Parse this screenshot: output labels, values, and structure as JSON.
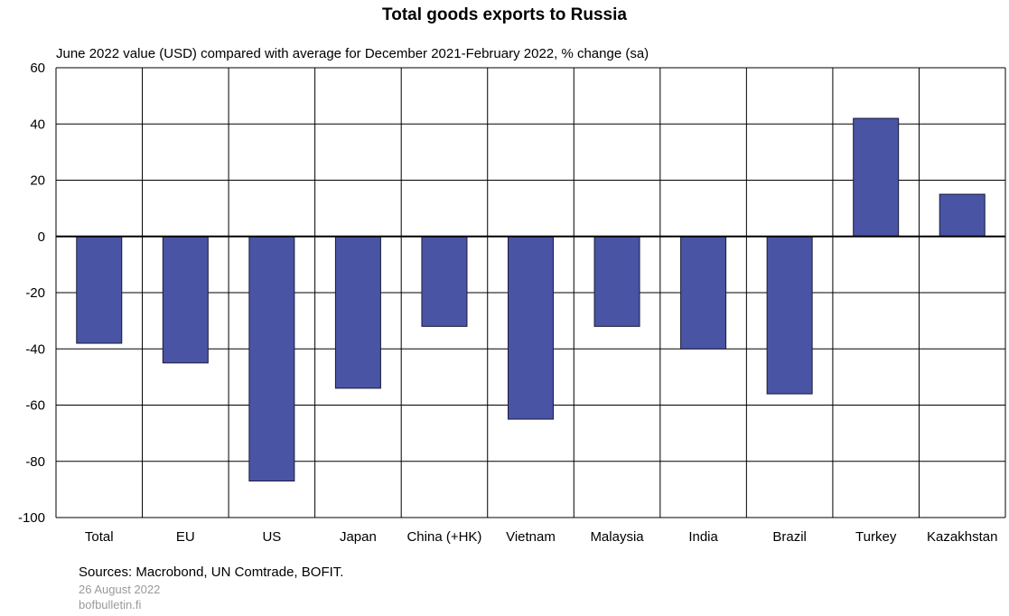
{
  "chart_data": {
    "type": "bar",
    "title": "Total goods exports to Russia",
    "subtitle": "June 2022 value (USD) compared with average for December 2021-February 2022, % change (sa)",
    "categories": [
      "Total",
      "EU",
      "US",
      "Japan",
      "China (+HK)",
      "Vietnam",
      "Malaysia",
      "India",
      "Brazil",
      "Turkey",
      "Kazakhstan"
    ],
    "values": [
      -38,
      -45,
      -87,
      -54,
      -32,
      -65,
      -32,
      -40,
      -56,
      42,
      15
    ],
    "ylim": [
      -100,
      60
    ],
    "yticks": [
      60,
      40,
      20,
      0,
      -20,
      -40,
      -60,
      -80,
      -100
    ],
    "grid": true,
    "legend": "none",
    "bar_color": "#4a54a4"
  },
  "footer": {
    "sources": "Sources: Macrobond, UN Comtrade, BOFIT.",
    "date": "26 August 2022",
    "site": "bofbulletin.fi"
  }
}
